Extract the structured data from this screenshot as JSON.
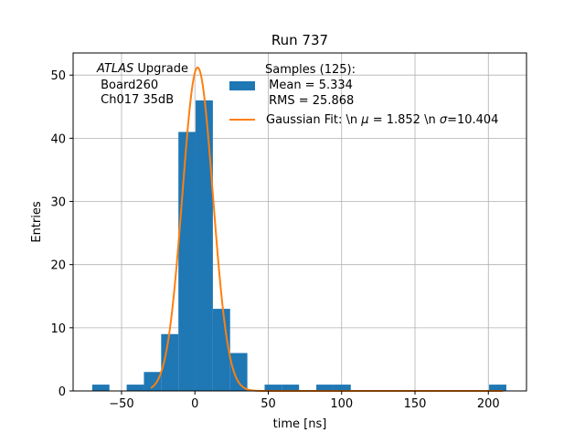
{
  "chart_data": {
    "type": "bar",
    "title": "Run 737",
    "xlabel": "time [ns]",
    "ylabel": "Entries",
    "xlim": [
      -83,
      226
    ],
    "ylim": [
      0,
      53.5
    ],
    "xticks": [
      -50,
      0,
      50,
      100,
      150,
      200
    ],
    "xtick_labels": [
      "−50",
      "0",
      "50",
      "100",
      "150",
      "200"
    ],
    "yticks": [
      0,
      10,
      20,
      30,
      40,
      50
    ],
    "ytick_labels": [
      "0",
      "10",
      "20",
      "30",
      "40",
      "50"
    ],
    "grid": true,
    "bin_width": 11.75,
    "bins": [
      {
        "x0": -70.0,
        "count": 1
      },
      {
        "x0": -58.25,
        "count": 0
      },
      {
        "x0": -46.5,
        "count": 1
      },
      {
        "x0": -34.75,
        "count": 3
      },
      {
        "x0": -23.0,
        "count": 9
      },
      {
        "x0": -11.25,
        "count": 41
      },
      {
        "x0": 0.5,
        "count": 46
      },
      {
        "x0": 12.25,
        "count": 13
      },
      {
        "x0": 24.0,
        "count": 6
      },
      {
        "x0": 35.75,
        "count": 0
      },
      {
        "x0": 47.5,
        "count": 1
      },
      {
        "x0": 59.25,
        "count": 1
      },
      {
        "x0": 71.0,
        "count": 0
      },
      {
        "x0": 82.75,
        "count": 1
      },
      {
        "x0": 94.5,
        "count": 1
      },
      {
        "x0": 200.5,
        "count": 1
      }
    ],
    "fit": {
      "mu": 1.852,
      "sigma": 10.404,
      "amplitude": 51.2
    },
    "series": [
      {
        "name": "Samples (125):",
        "name_lines": [
          "Samples (125):",
          " Mean = 5.334",
          " RMS = 25.868"
        ],
        "color": "#1f77b4"
      },
      {
        "name": "Gaussian Fit: \\n μ = 1.852 \\n σ=10.404",
        "color": "#ff7f0e"
      }
    ],
    "legend_position": "upper-right",
    "annotation": {
      "italic": "ATLAS",
      "rest": " Upgrade",
      "lines": [
        " Board260",
        " Ch017 35dB"
      ]
    }
  },
  "legend": {
    "samples_line1": "Samples (125):",
    "samples_line2": " Mean = 5.334",
    "samples_line3": " RMS = 25.868",
    "fit_prefix": "Gaussian Fit: \\n ",
    "fit_mu_sym": "μ",
    "fit_mid": " = 1.852 \\n ",
    "fit_sigma_sym": "σ",
    "fit_suffix": "=10.404"
  }
}
